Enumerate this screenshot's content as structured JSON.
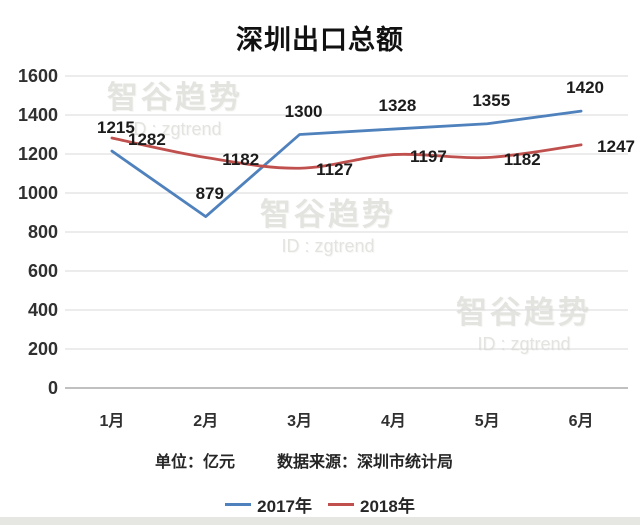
{
  "chart_data": {
    "type": "line",
    "title": "深圳出口总额",
    "categories": [
      "1月",
      "2月",
      "3月",
      "4月",
      "5月",
      "6月"
    ],
    "series": [
      {
        "name": "2017年",
        "color": "#4F81BD",
        "values": [
          1215,
          879,
          1300,
          1328,
          1355,
          1420
        ]
      },
      {
        "name": "2018年",
        "color": "#C0504D",
        "values": [
          1282,
          1182,
          1127,
          1197,
          1182,
          1247
        ]
      }
    ],
    "xlabel": "",
    "ylabel": "",
    "ylim": [
      0,
      1600
    ],
    "y_ticks": [
      0,
      200,
      400,
      600,
      800,
      1000,
      1200,
      1400,
      1600
    ],
    "grid": true,
    "legend_position": "bottom",
    "data_labels": true
  },
  "footer": {
    "unit": "单位：亿元",
    "source": "数据来源：深圳市统计局"
  },
  "watermark": {
    "line1": "智谷趋势",
    "line2": "ID : zgtrend"
  },
  "colors": {
    "gridline": "#d9d9d9",
    "axis_line": "#9a9a9a",
    "series_2017": "#4F81BD",
    "series_2018": "#C0504D"
  }
}
